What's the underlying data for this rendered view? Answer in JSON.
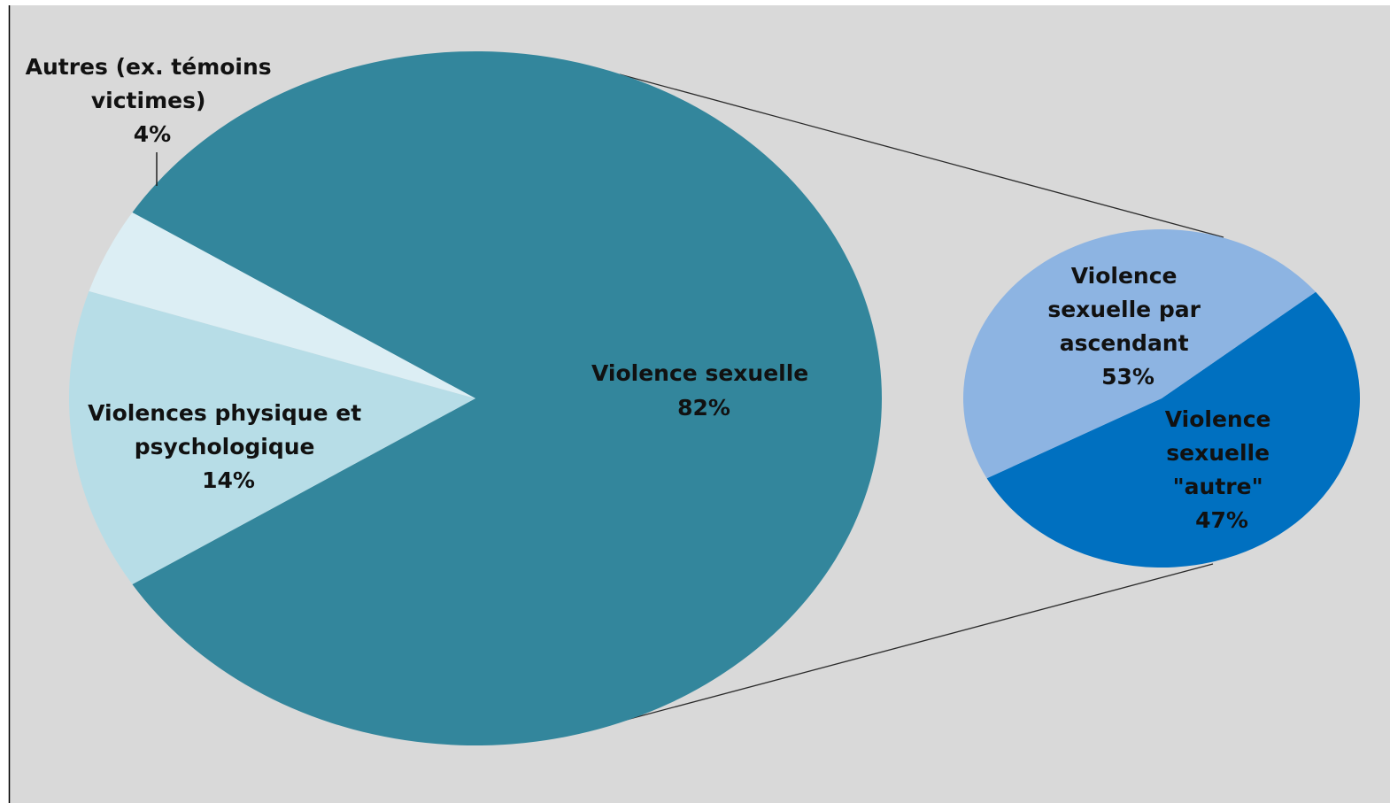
{
  "chart_data": {
    "type": "pie",
    "subtype": "pie-of-pie",
    "title": "",
    "colors": {
      "background": "#d9d9d9",
      "connector": "#2b2b2b"
    },
    "main_pie": {
      "slices": [
        {
          "label_lines": [
            "Violence sexuelle"
          ],
          "value": 82,
          "value_label": "82%",
          "color": "#33869c",
          "expanded": true
        },
        {
          "label_lines": [
            "Violences physique et",
            "psychologique"
          ],
          "value": 14,
          "value_label": "14%",
          "color": "#b7dde7"
        },
        {
          "label_lines": [
            "Autres (ex. témoins",
            "victimes)"
          ],
          "value": 4,
          "value_label": "4%",
          "color": "#dceef4"
        }
      ]
    },
    "secondary_pie": {
      "breakdown_of": "Violence sexuelle",
      "slices": [
        {
          "label_lines": [
            "Violence",
            "sexuelle par",
            "ascendant"
          ],
          "value": 53,
          "value_label": "53%",
          "color": "#0070c0"
        },
        {
          "label_lines": [
            "Violence",
            "sexuelle",
            "\"autre\""
          ],
          "value": 47,
          "value_label": "47%",
          "color": "#8db4e2"
        }
      ]
    }
  }
}
